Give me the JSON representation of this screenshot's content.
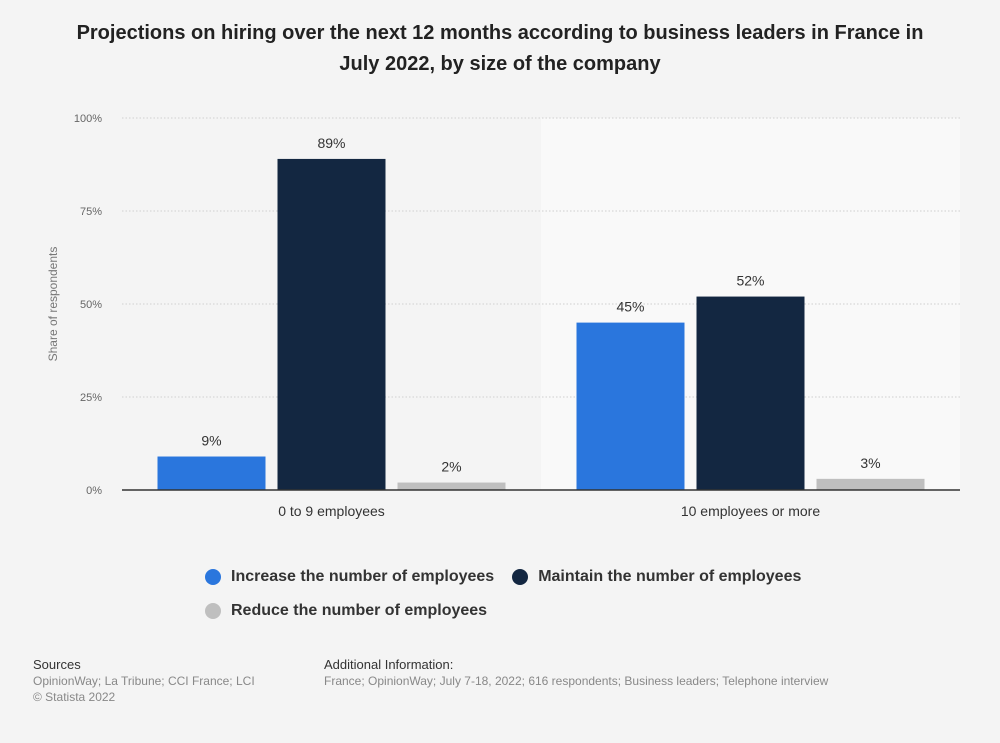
{
  "colors": {
    "increase": "#2a76dd",
    "maintain": "#132741",
    "reduce": "#bfbfbf",
    "plot_shade": "#f9f9f9",
    "grid": "#cfcfcf",
    "axis": "#333333",
    "tick_text": "#666666",
    "label_text": "#333333"
  },
  "chart_data": {
    "type": "bar",
    "title": "Projections on hiring over the next 12 months according to business leaders in France in July 2022, by size of the company",
    "categories": [
      "0 to 9 employees",
      "10 employees or more"
    ],
    "series": [
      {
        "name": "Increase the number of employees",
        "color_key": "increase",
        "values": [
          9,
          45
        ],
        "labels": [
          "9%",
          "45%"
        ]
      },
      {
        "name": "Maintain the number of employees",
        "color_key": "maintain",
        "values": [
          89,
          52
        ],
        "labels": [
          "89%",
          "52%"
        ]
      },
      {
        "name": "Reduce the number of employees",
        "color_key": "reduce",
        "values": [
          2,
          3
        ],
        "labels": [
          "2%",
          "3%"
        ]
      }
    ],
    "xlabel": "",
    "ylabel": "Share of respondents",
    "ylim": [
      0,
      100
    ],
    "yticks": [
      0,
      25,
      50,
      75,
      100
    ],
    "ytick_labels": [
      "0%",
      "25%",
      "50%",
      "75%",
      "100%"
    ],
    "grid": true,
    "legend_position": "bottom"
  },
  "footer": {
    "sources_heading": "Sources",
    "sources_line1": "OpinionWay; La Tribune; CCI France; LCI",
    "sources_line2": "© Statista 2022",
    "info_heading": "Additional Information:",
    "info_text": "France; OpinionWay; July 7-18, 2022; 616 respondents; Business leaders; Telephone interview"
  }
}
